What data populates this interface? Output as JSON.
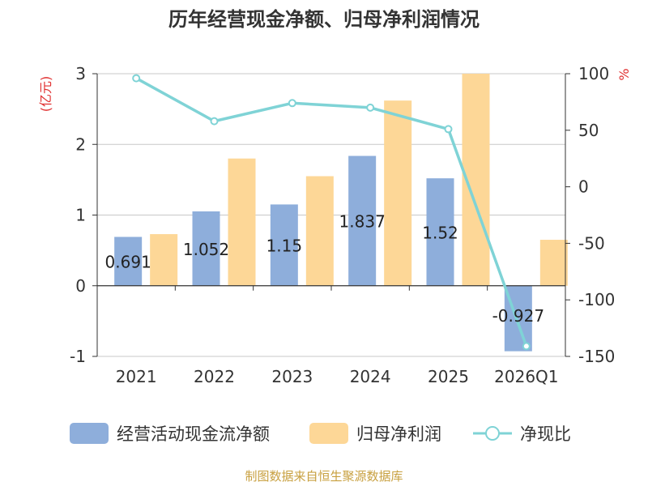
{
  "chart_data": {
    "type": "bar+line",
    "title": "历年经营现金净额、归母净利润情况",
    "categories": [
      "2021",
      "2022",
      "2023",
      "2024",
      "2025",
      "2026Q1"
    ],
    "series": [
      {
        "name": "经营活动现金流净额",
        "type": "bar",
        "axis": "left",
        "color": "#8eaedb",
        "values": [
          0.691,
          1.052,
          1.15,
          1.837,
          1.52,
          -0.927
        ],
        "labels": [
          "0.691",
          "1.052",
          "1.15",
          "1.837",
          "1.52",
          "-0.927"
        ]
      },
      {
        "name": "归母净利润",
        "type": "bar",
        "axis": "left",
        "color": "#fdd797",
        "values": [
          0.73,
          1.8,
          1.55,
          2.62,
          3.0,
          0.65
        ]
      },
      {
        "name": "净现比",
        "type": "line",
        "axis": "right",
        "color": "#7fd3d6",
        "values": [
          96,
          58,
          74,
          70,
          51,
          -141
        ]
      }
    ],
    "left_axis": {
      "unit": "(亿元)",
      "ylim": [
        -1,
        3
      ],
      "ticks": [
        -1,
        0,
        1,
        2,
        3
      ]
    },
    "right_axis": {
      "unit": "%",
      "ylim": [
        -150,
        100
      ],
      "ticks": [
        100,
        50,
        0,
        -50,
        -100,
        -150
      ]
    },
    "legend_position": "bottom"
  },
  "footer": {
    "source": "制图数据来自恒生聚源数据库"
  }
}
